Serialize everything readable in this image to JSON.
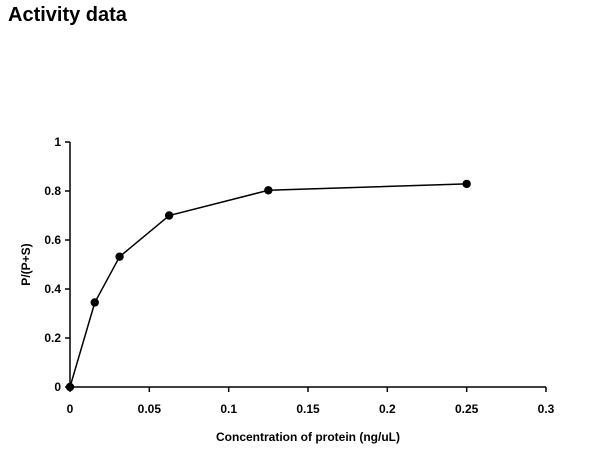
{
  "title": "Activity data",
  "chart_data": {
    "type": "scatter",
    "xlabel": "Concentration of protein (ng/uL)",
    "ylabel": "P/(P+S)",
    "xlim": [
      0,
      0.3
    ],
    "ylim": [
      0,
      1
    ],
    "xticks": [
      0,
      0.05,
      0.1,
      0.15,
      0.2,
      0.25,
      0.3
    ],
    "xtick_labels": [
      "0",
      "0.05",
      "0.1",
      "0.15",
      "0.2",
      "0.25",
      "0.3"
    ],
    "yticks": [
      0,
      0.2,
      0.4,
      0.6,
      0.8,
      1
    ],
    "ytick_labels": [
      "0",
      "0.2",
      "0.4",
      "0.6",
      "0.8",
      "1"
    ],
    "grid": false,
    "legend": "none",
    "line_connected": true,
    "series": [
      {
        "x": [
          0,
          0.0156,
          0.03125,
          0.0625,
          0.125,
          0.25
        ],
        "y": [
          0,
          0.345,
          0.532,
          0.7,
          0.803,
          0.829
        ]
      }
    ],
    "colors": {
      "line": "#000000",
      "marker": "#000000"
    }
  }
}
